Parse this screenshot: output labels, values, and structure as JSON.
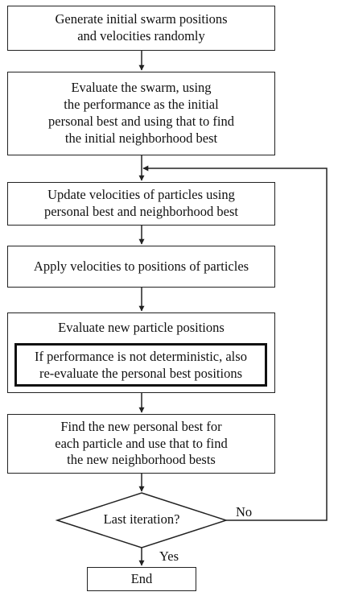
{
  "steps": {
    "init": [
      "Generate initial swarm positions",
      "and velocities randomly"
    ],
    "evaluate_swarm": [
      "Evaluate the swarm, using",
      "the performance as the initial",
      "personal best and using that to find",
      "the initial neighborhood best"
    ],
    "update_velocities": [
      "Update velocities of particles using",
      "personal best and neighborhood best"
    ],
    "apply_velocities": [
      "Apply velocities to positions of particles"
    ],
    "evaluate_new": {
      "title": "Evaluate new particle positions",
      "note": [
        "If performance is not deterministic, also",
        "re-evaluate the personal best positions"
      ]
    },
    "find_best": [
      "Find the new personal best for",
      "each particle and use that to find",
      "the new neighborhood bests"
    ],
    "decision": "Last iteration?",
    "no_label": "No",
    "yes_label": "Yes",
    "end": "End"
  }
}
